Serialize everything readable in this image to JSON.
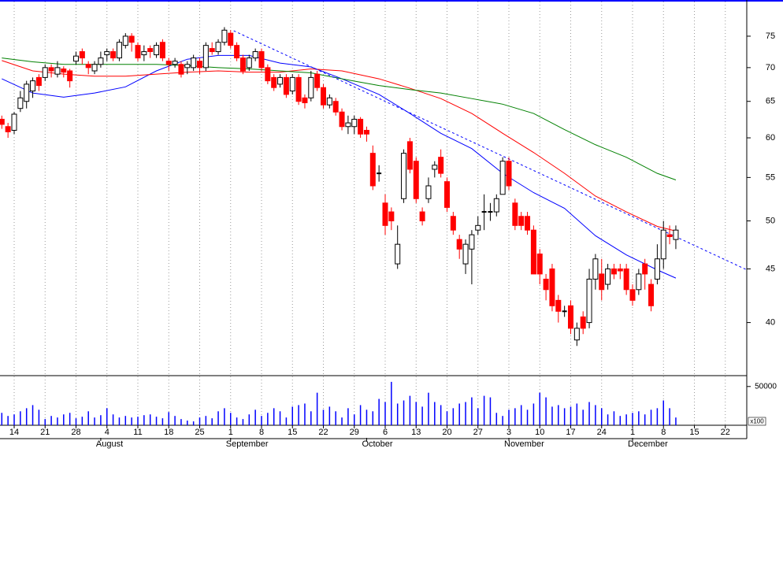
{
  "chart_data": {
    "type": "candlestick",
    "log": true,
    "ylim": [
      35.6,
      81.2
    ],
    "yticks": [
      40,
      45,
      50,
      55,
      60,
      65,
      70,
      75
    ],
    "volume_ylim": [
      0,
      63000
    ],
    "volume_yticks": [
      50000
    ],
    "volume_unit": "x100",
    "grid": true,
    "up_color": "#ffffff",
    "down_color": "#ff0000",
    "volume_color": "#0000ff",
    "categories": [
      null,
      null,
      "14",
      null,
      null,
      null,
      null,
      "21",
      null,
      null,
      null,
      null,
      "28",
      null,
      null,
      null,
      null,
      "4",
      null,
      null,
      null,
      null,
      "11",
      null,
      null,
      null,
      null,
      "18",
      null,
      null,
      null,
      null,
      "25",
      null,
      null,
      null,
      null,
      "1",
      null,
      null,
      null,
      null,
      "8",
      null,
      null,
      null,
      null,
      "15",
      null,
      null,
      null,
      null,
      "22",
      null,
      null,
      null,
      null,
      "29",
      null,
      null,
      null,
      null,
      "6",
      null,
      null,
      null,
      null,
      "13",
      null,
      null,
      null,
      null,
      "20",
      null,
      null,
      null,
      null,
      "27",
      null,
      null,
      null,
      null,
      "3",
      null,
      null,
      null,
      null,
      "10",
      null,
      null,
      null,
      null,
      "17",
      null,
      null,
      null,
      null,
      "24",
      null,
      null,
      null,
      null,
      "1",
      null,
      null,
      null,
      null,
      "8",
      null,
      null,
      null,
      null,
      "15",
      null,
      null,
      null,
      null,
      "22",
      null,
      null
    ],
    "month_labels": [
      null,
      null,
      null,
      null,
      null,
      null,
      null,
      null,
      null,
      null,
      null,
      null,
      null,
      null,
      null,
      null,
      "August",
      null,
      null,
      null,
      null,
      null,
      null,
      null,
      null,
      null,
      null,
      null,
      null,
      null,
      null,
      null,
      null,
      null,
      null,
      null,
      null,
      "September",
      null,
      null,
      null,
      null,
      null,
      null,
      null,
      null,
      null,
      null,
      null,
      null,
      null,
      null,
      null,
      null,
      null,
      null,
      null,
      null,
      null,
      "October",
      null,
      null,
      null,
      null,
      null,
      null,
      null,
      null,
      null,
      null,
      null,
      null,
      null,
      null,
      null,
      null,
      null,
      null,
      null,
      null,
      null,
      null,
      "November",
      null,
      null,
      null,
      null,
      null,
      null,
      null,
      null,
      null,
      null,
      null,
      null,
      null,
      null,
      null,
      null,
      null,
      null,
      null,
      "December",
      null,
      null,
      null,
      null,
      null,
      null,
      null,
      null,
      null,
      null,
      null,
      null,
      null,
      null,
      null,
      null,
      null
    ],
    "open": [
      62.5,
      61.5,
      61,
      64,
      65,
      66.5,
      68.5,
      68.5,
      70,
      69,
      69.8,
      69.5,
      71,
      72.5,
      70.5,
      69.5,
      70.5,
      72,
      72.5,
      71.5,
      73.5,
      75,
      73.5,
      72,
      73,
      72,
      74,
      71,
      70.5,
      70.5,
      70,
      70,
      71,
      70,
      73,
      72.5,
      74,
      75.5,
      73.5,
      71.5,
      70,
      71.5,
      72.5,
      70,
      68.5,
      67.5,
      68.5,
      66.5,
      68.5,
      65.5,
      65.5,
      69,
      67,
      64.5,
      65,
      63.5,
      61.5,
      61.5,
      62.5,
      61,
      58,
      55.5,
      52,
      51,
      45.5,
      52.5,
      59.5,
      57,
      51,
      52.5,
      56,
      57.5,
      54.5,
      50.5,
      48,
      45.5,
      47,
      49,
      51,
      51,
      51,
      53,
      57,
      52,
      50.5,
      50.5,
      49,
      46.5,
      44,
      45,
      42,
      41,
      41.5,
      38.5,
      40.5,
      40,
      44,
      44.5,
      43.5,
      45,
      45,
      45,
      43,
      43,
      45.5,
      43.5,
      44,
      46,
      48.5,
      48,
      null,
      null,
      null,
      null,
      null,
      null,
      null,
      null,
      null,
      null
    ],
    "high": [
      63,
      62,
      63.5,
      66.5,
      68,
      68.5,
      69,
      70.5,
      70.5,
      71,
      70.2,
      69.8,
      72.5,
      73,
      71,
      71,
      72.5,
      73,
      73,
      74.5,
      75.5,
      75.5,
      74,
      73.5,
      73.5,
      74,
      74.5,
      71.5,
      71.5,
      71,
      71,
      72,
      71.5,
      74,
      74,
      74.5,
      76.5,
      76,
      74,
      72,
      72,
      73,
      73,
      70.5,
      69,
      69,
      69,
      69,
      69,
      66,
      69.5,
      69.5,
      67.5,
      66,
      65.5,
      64,
      63,
      63,
      62.8,
      61.5,
      59,
      56.5,
      53,
      51.5,
      49.5,
      58.5,
      60,
      57.5,
      51.5,
      55,
      57,
      58.5,
      55,
      51,
      48.5,
      48,
      49,
      50.5,
      53,
      52,
      53,
      57.5,
      57.5,
      52.5,
      51,
      51,
      49.5,
      47,
      44.5,
      45.5,
      42.5,
      41.5,
      42,
      40,
      41,
      45,
      46.5,
      46,
      45.5,
      45.5,
      45.5,
      45.5,
      43.5,
      45,
      46,
      44,
      47.5,
      50,
      49.5,
      49.5,
      null,
      null,
      null,
      null,
      null,
      null,
      null,
      null,
      null,
      null
    ],
    "low": [
      61.2,
      60,
      60.5,
      63.5,
      64,
      65.5,
      66.5,
      68,
      68.5,
      68.5,
      68.5,
      67,
      70.5,
      70.5,
      69,
      69,
      70,
      71,
      71,
      71,
      73,
      72.5,
      71,
      71,
      71.5,
      71.5,
      71,
      69.5,
      70,
      68.5,
      69,
      69.5,
      69,
      69.5,
      72,
      72,
      73.5,
      73,
      71,
      69,
      69.5,
      71,
      69.5,
      67.5,
      66.5,
      67,
      65.5,
      66,
      64.5,
      64,
      65,
      66.5,
      64,
      64,
      63,
      61,
      60.5,
      60.5,
      60,
      59.5,
      53.5,
      54.5,
      48.5,
      49,
      45,
      52,
      55.5,
      52,
      49.5,
      52,
      55,
      55,
      51,
      48.5,
      46,
      44.5,
      43.5,
      48.5,
      49,
      50,
      50.5,
      53,
      53.5,
      49,
      49,
      48.5,
      44.5,
      43.5,
      42,
      41,
      40,
      40.5,
      39,
      38,
      39,
      39.5,
      43,
      42,
      43,
      44,
      44,
      42.5,
      41.5,
      42.5,
      43,
      41,
      43.5,
      45,
      47.5,
      47,
      null,
      null,
      null,
      null,
      null,
      null,
      null,
      null,
      null,
      null
    ],
    "close": [
      61.8,
      60.8,
      63.2,
      65.5,
      67.5,
      68,
      67.3,
      70,
      69.5,
      70,
      69.3,
      68,
      71.8,
      71.5,
      70,
      70.5,
      71.5,
      72.5,
      71.5,
      74,
      75,
      74,
      71.5,
      72.5,
      72.5,
      73.5,
      71.5,
      70.5,
      71,
      69,
      70.5,
      71.5,
      70,
      73.5,
      72.5,
      74,
      76,
      73.5,
      71.5,
      69.5,
      71.5,
      72.5,
      70,
      68,
      67,
      68.5,
      66,
      68.5,
      65,
      64.8,
      68.5,
      67,
      64.5,
      65.5,
      63.5,
      61.5,
      62,
      62.5,
      60.5,
      60.5,
      54,
      55.5,
      49.5,
      50,
      47.5,
      58,
      56,
      52.5,
      50,
      54,
      56.5,
      55.5,
      51.5,
      49,
      47,
      47.5,
      48.5,
      49.5,
      51,
      51,
      52.5,
      57,
      54,
      49.5,
      49.5,
      49,
      44.5,
      44.5,
      43,
      41.5,
      41,
      41,
      39.5,
      39.5,
      39.5,
      44,
      46,
      43,
      45,
      44.5,
      44.8,
      43,
      42,
      44.5,
      44.5,
      41.5,
      46,
      49,
      48.3,
      49,
      null,
      null,
      null,
      null,
      null,
      null,
      null,
      null,
      null,
      null
    ],
    "volume": [
      16000,
      12000,
      14000,
      18000,
      22000,
      26000,
      20000,
      8000,
      12000,
      10000,
      14000,
      16000,
      9000,
      11000,
      18000,
      10000,
      13000,
      22000,
      14000,
      10000,
      12000,
      10000,
      11000,
      13000,
      14000,
      11000,
      9000,
      17000,
      12000,
      8000,
      6000,
      5000,
      10000,
      12000,
      9000,
      18000,
      22000,
      16000,
      10000,
      8000,
      14000,
      20000,
      12000,
      16000,
      22000,
      18000,
      10000,
      24000,
      26000,
      28000,
      18000,
      42000,
      20000,
      24000,
      18000,
      10000,
      22000,
      14000,
      26000,
      20000,
      18000,
      34000,
      30000,
      56000,
      28000,
      32000,
      38000,
      30000,
      24000,
      42000,
      30000,
      26000,
      18000,
      22000,
      28000,
      30000,
      36000,
      22000,
      38000,
      36000,
      16000,
      12000,
      20000,
      22000,
      26000,
      20000,
      28000,
      42000,
      36000,
      24000,
      26000,
      22000,
      24000,
      28000,
      20000,
      30000,
      26000,
      22000,
      14000,
      18000,
      12000,
      14000,
      16000,
      18000,
      14000,
      20000,
      22000,
      32000,
      22000,
      10000,
      null,
      null,
      null,
      null,
      null,
      null,
      null,
      null,
      null,
      null
    ],
    "lines": [
      {
        "color": "#0000ff",
        "x": [
          0,
          5,
          10,
          15,
          20,
          25,
          30,
          35,
          40,
          45,
          50,
          55,
          61,
          66,
          71,
          76,
          81,
          86,
          91,
          96,
          101,
          106,
          109
        ],
        "values": [
          68.3,
          66.2,
          65.6,
          66.2,
          67.1,
          69.5,
          71.3,
          71.9,
          71.9,
          70.7,
          70.1,
          68.3,
          66.0,
          63.3,
          60.6,
          58.6,
          55.5,
          53.2,
          51.4,
          48.4,
          46.4,
          44.9,
          44.1
        ]
      },
      {
        "color": "#ff0000",
        "x": [
          0,
          5,
          10,
          15,
          20,
          25,
          30,
          35,
          40,
          45,
          50,
          55,
          61,
          66,
          71,
          76,
          81,
          86,
          91,
          96,
          101,
          106,
          109
        ],
        "values": [
          71.1,
          69.5,
          69.0,
          68.7,
          68.7,
          69.0,
          69.3,
          69.5,
          69.3,
          69.3,
          69.8,
          69.5,
          68.3,
          66.9,
          65.4,
          63.3,
          60.6,
          58.1,
          55.5,
          52.8,
          51.0,
          49.4,
          48.9
        ]
      },
      {
        "color": "#008000",
        "x": [
          0,
          5,
          10,
          15,
          20,
          25,
          30,
          35,
          40,
          45,
          50,
          55,
          61,
          66,
          71,
          76,
          81,
          86,
          91,
          96,
          101,
          106,
          109
        ],
        "values": [
          71.5,
          70.9,
          70.5,
          70.5,
          70.5,
          70.5,
          70.3,
          70.0,
          69.8,
          69.5,
          69.2,
          68.3,
          67.3,
          66.7,
          66.2,
          65.4,
          64.6,
          63.3,
          61.1,
          59.1,
          57.5,
          55.5,
          54.7
        ]
      }
    ],
    "trendline": {
      "color": "#0000ff",
      "x": [
        37.5,
        120.5
      ],
      "values": [
        75.9,
        44.9
      ]
    }
  }
}
